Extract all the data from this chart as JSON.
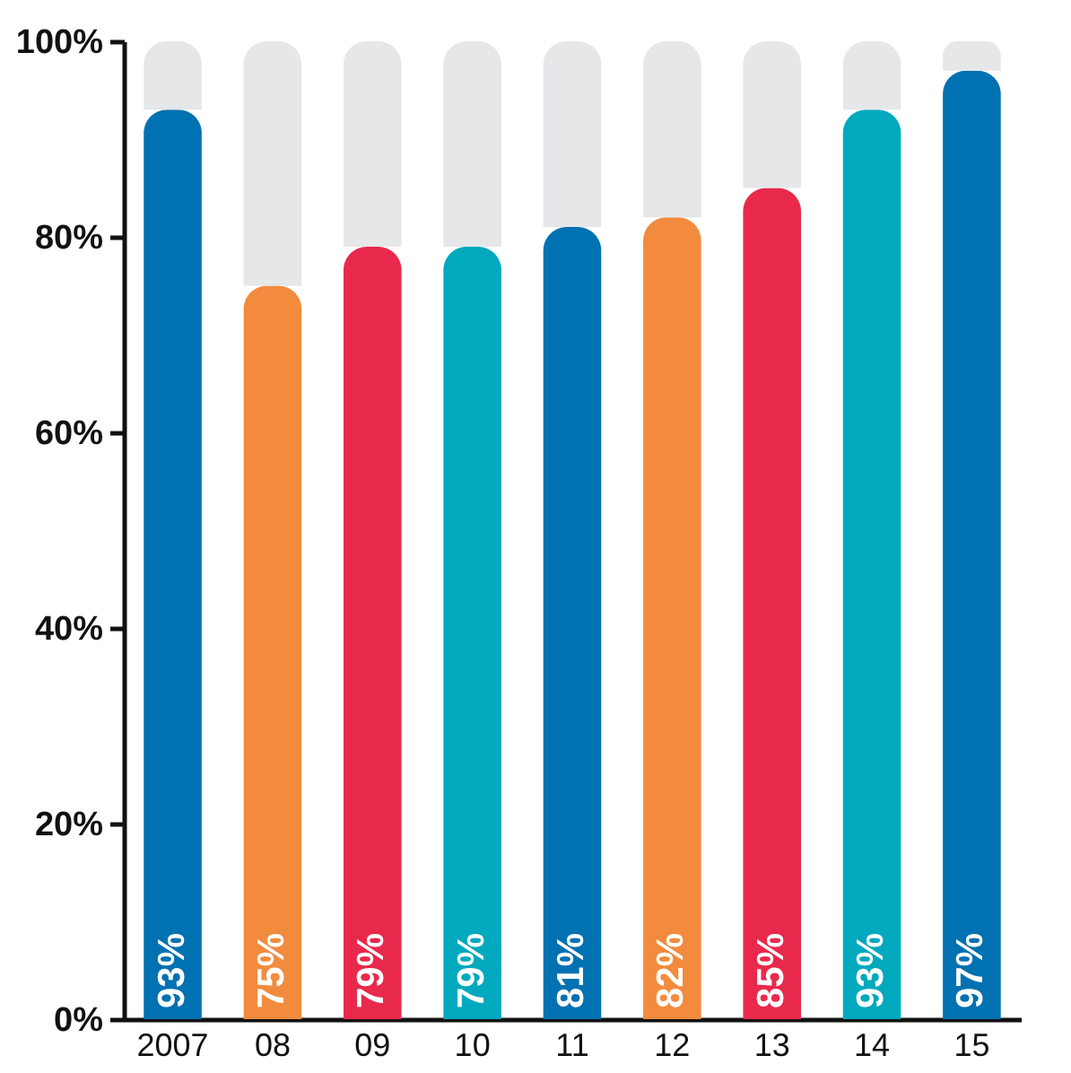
{
  "chart_data": {
    "type": "bar",
    "stacked": true,
    "categories": [
      "2007",
      "08",
      "09",
      "10",
      "11",
      "12",
      "13",
      "14",
      "15"
    ],
    "series": [
      {
        "colors": [
          "#0071b1",
          "#f28b3d",
          "#e8294c",
          "#00a9bd",
          "#0071b1",
          "#f28b3d",
          "#e8294c",
          "#00a9bd",
          "#0071b1"
        ],
        "values": [
          93,
          75,
          79,
          79,
          81,
          82,
          85,
          93,
          97
        ],
        "value_labels": [
          "93%",
          "75%",
          "79%",
          "79%",
          "81%",
          "82%",
          "85%",
          "93%",
          "97%"
        ]
      },
      {
        "color": "#e6e7e9",
        "values": [
          7,
          25,
          21,
          21,
          19,
          18,
          15,
          7,
          3
        ]
      }
    ],
    "ylim": [
      0,
      100
    ],
    "yticks": [
      {
        "value": 0,
        "label": "0%"
      },
      {
        "value": 20,
        "label": "20%"
      },
      {
        "value": 40,
        "label": "40%"
      },
      {
        "value": 60,
        "label": "60%"
      },
      {
        "value": 80,
        "label": "80%"
      },
      {
        "value": 100,
        "label": "100%"
      }
    ],
    "grid": false
  }
}
